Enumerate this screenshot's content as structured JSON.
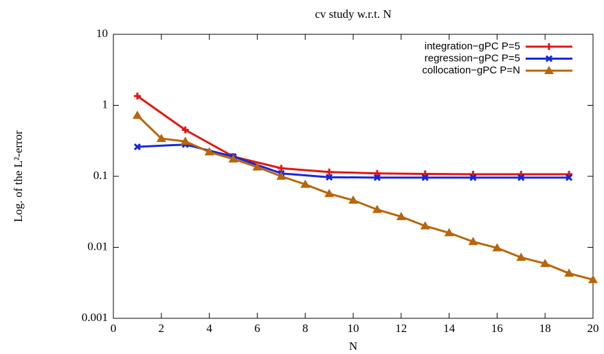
{
  "chart_data": {
    "type": "line",
    "title": "cv study w.r.t. N",
    "xlabel": "N",
    "ylabel": "Log. of the L²-error",
    "log_y": true,
    "legend": "top-right",
    "xlim": [
      0,
      20
    ],
    "xticks": [
      0,
      2,
      4,
      6,
      8,
      10,
      12,
      14,
      16,
      18,
      20
    ],
    "ylim": [
      0.001,
      10
    ],
    "yticks": [
      0.001,
      0.01,
      0.1,
      1,
      10
    ],
    "series": [
      {
        "name": "integration−gPC P=5",
        "color": "#e8140f",
        "marker": "plus",
        "x": [
          1,
          3,
          5,
          7,
          9,
          11,
          13,
          15,
          17,
          19
        ],
        "values": [
          1.35,
          0.45,
          0.19,
          0.13,
          0.115,
          0.11,
          0.108,
          0.107,
          0.107,
          0.107
        ]
      },
      {
        "name": "regression−gPC P=5",
        "color": "#1428e0",
        "marker": "cross",
        "x": [
          1,
          3,
          5,
          7,
          9,
          11,
          13,
          15,
          17,
          19
        ],
        "values": [
          0.26,
          0.28,
          0.19,
          0.11,
          0.097,
          0.096,
          0.096,
          0.096,
          0.096,
          0.096
        ]
      },
      {
        "name": "collocation−gPC P=N",
        "color": "#b8660b",
        "marker": "triangle",
        "x": [
          1,
          2,
          3,
          4,
          5,
          6,
          7,
          8,
          9,
          10,
          11,
          12,
          13,
          14,
          15,
          16,
          17,
          18,
          19,
          20
        ],
        "values": [
          0.72,
          0.34,
          0.31,
          0.22,
          0.175,
          0.135,
          0.1,
          0.077,
          0.057,
          0.046,
          0.034,
          0.027,
          0.02,
          0.016,
          0.012,
          0.0098,
          0.0072,
          0.0059,
          0.0043,
          0.0035
        ]
      }
    ]
  }
}
